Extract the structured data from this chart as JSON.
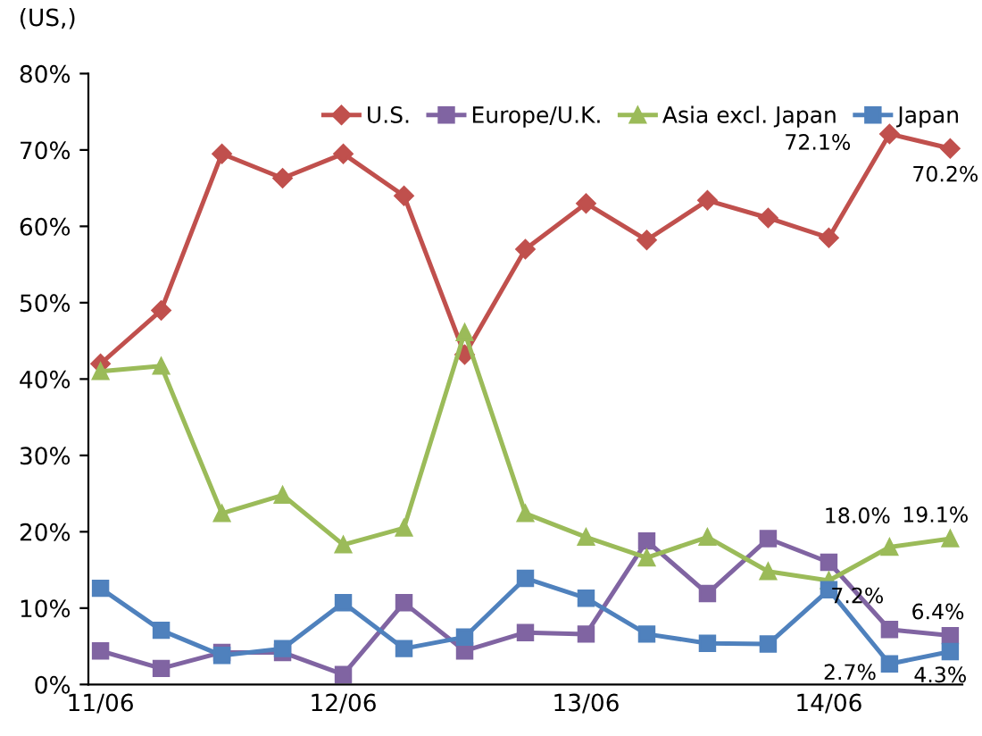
{
  "chart_data": {
    "type": "line",
    "ylabel": "(US,)",
    "categories": [
      "11/06",
      null,
      null,
      null,
      "12/06",
      null,
      null,
      null,
      "13/06",
      null,
      null,
      null,
      "14/06",
      null,
      null
    ],
    "series": [
      {
        "name": "U.S.",
        "color": "#c0504d",
        "marker": "diamond",
        "values": [
          42,
          49,
          69.5,
          66.3,
          69.5,
          64,
          43.2,
          57,
          63,
          58.2,
          63.4,
          61.1,
          58.5,
          72.1,
          70.2
        ],
        "value_labels": [
          null,
          null,
          null,
          null,
          null,
          null,
          null,
          null,
          null,
          null,
          null,
          null,
          null,
          "72.1%",
          "70.2%"
        ]
      },
      {
        "name": "Europe/U.K.",
        "color": "#8064a2",
        "marker": "square",
        "values": [
          4.4,
          2.1,
          4.2,
          4.2,
          1.3,
          10.7,
          4.4,
          6.8,
          6.6,
          18.8,
          11.9,
          19.1,
          16.0,
          7.2,
          6.4
        ],
        "value_labels": [
          null,
          null,
          null,
          null,
          null,
          null,
          null,
          null,
          null,
          null,
          null,
          null,
          null,
          "7.2%",
          "6.4%"
        ]
      },
      {
        "name": "Asia excl. Japan",
        "color": "#9bbb59",
        "marker": "triangle",
        "values": [
          41,
          41.7,
          22.4,
          24.8,
          18.3,
          20.5,
          46.1,
          22.4,
          19.3,
          16.6,
          19.3,
          14.8,
          13.6,
          18.0,
          19.1
        ],
        "value_labels": [
          null,
          null,
          null,
          null,
          null,
          null,
          null,
          null,
          null,
          null,
          null,
          null,
          null,
          "18.0%",
          "19.1%"
        ]
      },
      {
        "name": "Japan",
        "color": "#4f81bd",
        "marker": "square",
        "values": [
          12.6,
          7.1,
          3.8,
          4.7,
          10.7,
          4.7,
          6.2,
          13.9,
          11.3,
          6.6,
          5.4,
          5.3,
          12.4,
          2.7,
          4.3
        ],
        "value_labels": [
          null,
          null,
          null,
          null,
          null,
          null,
          null,
          null,
          null,
          null,
          null,
          null,
          null,
          "2.7%",
          "4.3%"
        ]
      }
    ],
    "ylim": [
      0,
      80
    ],
    "yticks": [
      {
        "value": 0,
        "label": "0%"
      },
      {
        "value": 10,
        "label": "10%"
      },
      {
        "value": 20,
        "label": "20%"
      },
      {
        "value": 30,
        "label": "30%"
      },
      {
        "value": 40,
        "label": "40%"
      },
      {
        "value": 50,
        "label": "50%"
      },
      {
        "value": 60,
        "label": "60%"
      },
      {
        "value": 70,
        "label": "70%"
      },
      {
        "value": 80,
        "label": "80%"
      }
    ],
    "legend": "top right",
    "grid": false
  }
}
